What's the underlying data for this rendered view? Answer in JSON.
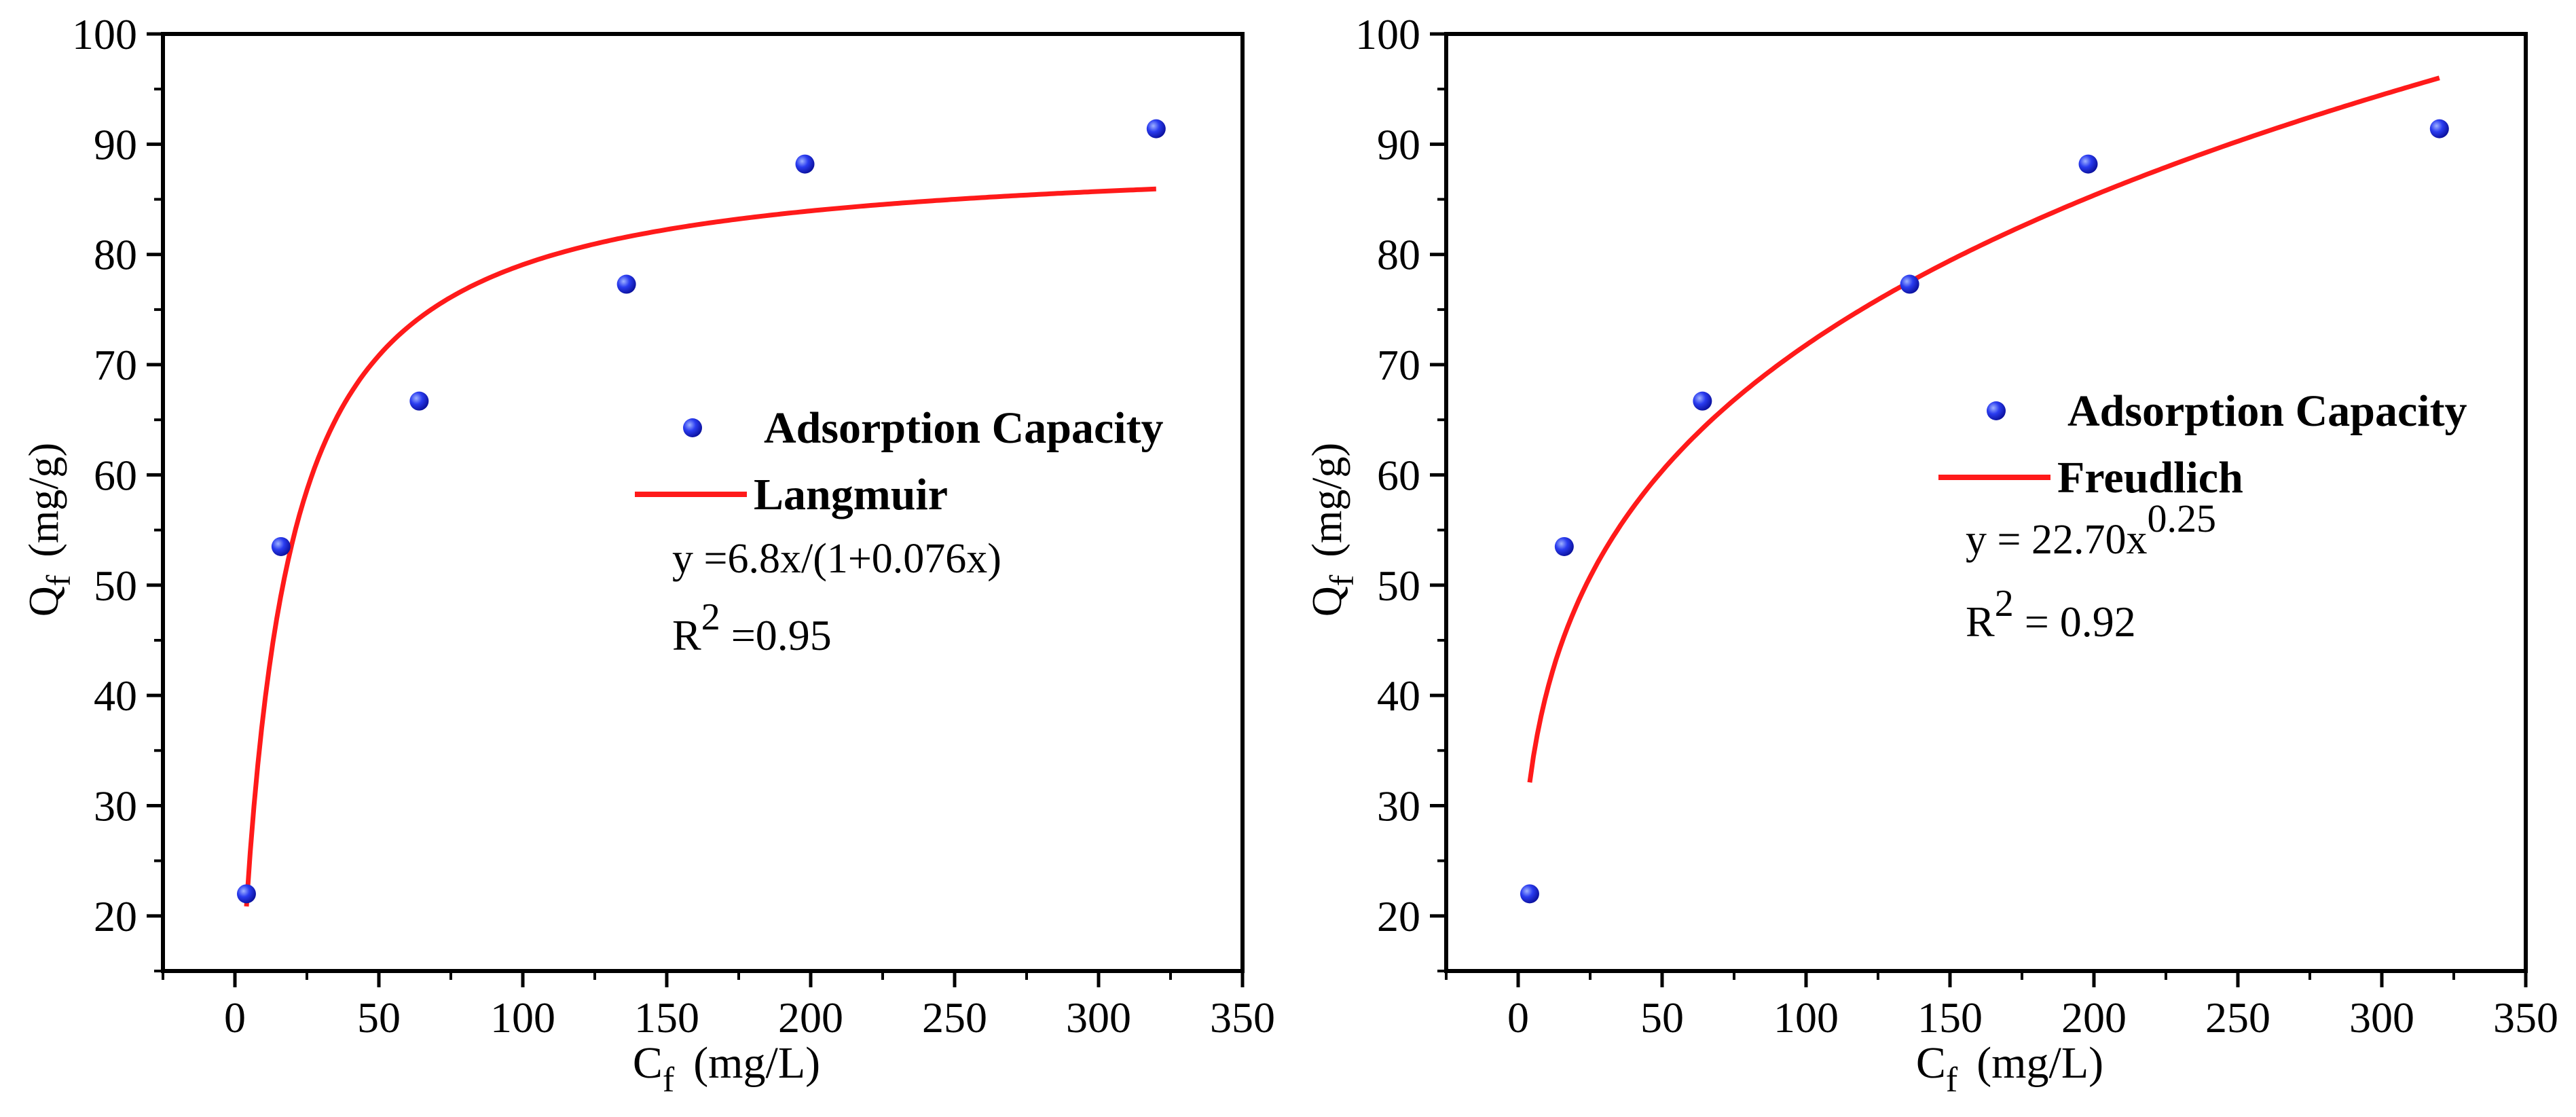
{
  "chart_data": [
    {
      "type": "scatter",
      "title": "",
      "xlabel": "C",
      "xlabel_sub": "f",
      "xlabel_unit": "(mg/L)",
      "ylabel": "Q",
      "ylabel_sub": "f",
      "ylabel_unit": "(mg/g)",
      "xlim": [
        -25,
        350
      ],
      "ylim": [
        15,
        100
      ],
      "xticks": [
        0,
        50,
        100,
        150,
        200,
        250,
        300,
        350
      ],
      "yticks": [
        20,
        30,
        40,
        50,
        60,
        70,
        80,
        90,
        100
      ],
      "series": [
        {
          "name": "Adsorption Capacity",
          "kind": "points",
          "color": "#1f2fe0",
          "x": [
            4,
            16,
            64,
            136,
            198,
            320
          ],
          "y": [
            22,
            53.5,
            66.7,
            77.3,
            88.2,
            91.4
          ]
        },
        {
          "name": "Langmuir",
          "kind": "fit",
          "model": "langmuir",
          "a": 6.8,
          "b": 0.076,
          "x_range": [
            4,
            320
          ],
          "color": "#ff1a1a"
        }
      ],
      "equation": {
        "pre": "y =6.8x/(1+0.076x)",
        "sup": ""
      },
      "r2": {
        "base": "R",
        "sup": "2",
        "text": " =0.95"
      }
    },
    {
      "type": "scatter",
      "title": "",
      "xlabel": "C",
      "xlabel_sub": "f",
      "xlabel_unit": "(mg/L)",
      "ylabel": "Q",
      "ylabel_sub": "f",
      "ylabel_unit": "(mg/g)",
      "xlim": [
        -25,
        350
      ],
      "ylim": [
        15,
        100
      ],
      "xticks": [
        0,
        50,
        100,
        150,
        200,
        250,
        300,
        350
      ],
      "yticks": [
        20,
        30,
        40,
        50,
        60,
        70,
        80,
        90,
        100
      ],
      "series": [
        {
          "name": "Adsorption Capacity",
          "kind": "points",
          "color": "#1f2fe0",
          "x": [
            4,
            16,
            64,
            136,
            198,
            320
          ],
          "y": [
            22,
            53.5,
            66.7,
            77.3,
            88.2,
            91.4
          ]
        },
        {
          "name": "Freudlich",
          "kind": "fit",
          "model": "freundlich",
          "k": 22.7,
          "n": 0.25,
          "x_range": [
            4,
            320
          ],
          "color": "#ff1a1a"
        }
      ],
      "equation": {
        "pre": "y = 22.70x",
        "sup": "0.25"
      },
      "r2": {
        "base": "R",
        "sup": "2",
        "text": " = 0.92"
      }
    }
  ]
}
